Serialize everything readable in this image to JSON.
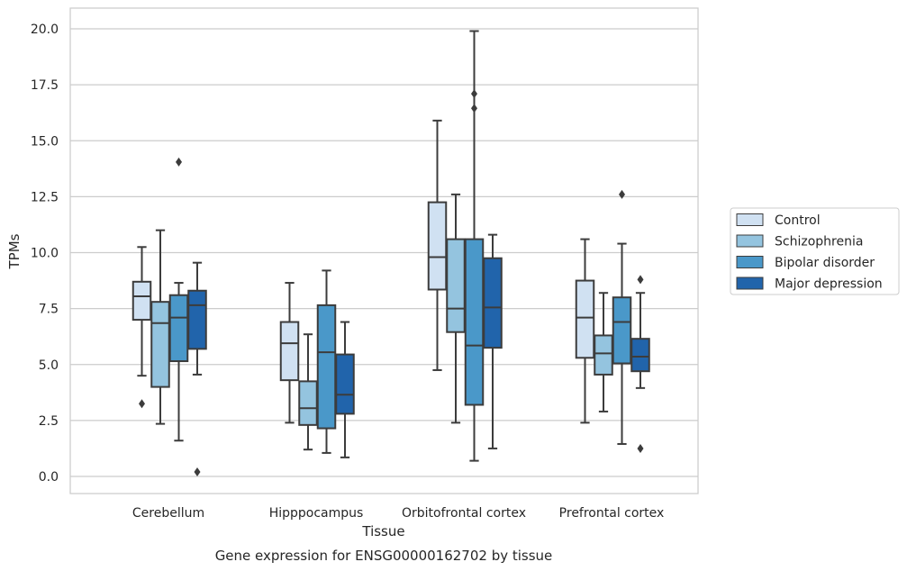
{
  "chart_data": {
    "type": "box",
    "title": "",
    "caption": "Gene expression for ENSG00000162702 by tissue",
    "xlabel": "Tissue",
    "ylabel": "TPMs",
    "ylim": [
      -0.8,
      20.9
    ],
    "yticks": [
      0.0,
      2.5,
      5.0,
      7.5,
      10.0,
      12.5,
      15.0,
      17.5,
      20.0
    ],
    "ytick_labels": [
      "0.0",
      "2.5",
      "5.0",
      "7.5",
      "10.0",
      "12.5",
      "15.0",
      "17.5",
      "20.0"
    ],
    "grid": "horizontal",
    "legend_placement": "right",
    "categories": [
      "Cerebellum",
      "Hipppocampus",
      "Orbitofrontal cortex",
      "Prefrontal cortex"
    ],
    "series": [
      {
        "name": "Control",
        "color": "#d0e1f2",
        "boxes": [
          {
            "whislo": 4.5,
            "q1": 7.0,
            "med": 8.05,
            "q3": 8.7,
            "whishi": 10.25,
            "fliers": [
              3.25
            ]
          },
          {
            "whislo": 2.4,
            "q1": 4.3,
            "med": 5.95,
            "q3": 6.9,
            "whishi": 8.65,
            "fliers": []
          },
          {
            "whislo": 4.75,
            "q1": 8.35,
            "med": 9.8,
            "q3": 12.25,
            "whishi": 15.9,
            "fliers": []
          },
          {
            "whislo": 2.4,
            "q1": 5.3,
            "med": 7.1,
            "q3": 8.75,
            "whishi": 10.6,
            "fliers": []
          }
        ]
      },
      {
        "name": "Schizophrenia",
        "color": "#94c4df",
        "boxes": [
          {
            "whislo": 2.35,
            "q1": 4.0,
            "med": 6.85,
            "q3": 7.8,
            "whishi": 11.0,
            "fliers": []
          },
          {
            "whislo": 1.2,
            "q1": 2.3,
            "med": 3.05,
            "q3": 4.25,
            "whishi": 6.35,
            "fliers": []
          },
          {
            "whislo": 2.4,
            "q1": 6.45,
            "med": 7.5,
            "q3": 10.6,
            "whishi": 12.6,
            "fliers": []
          },
          {
            "whislo": 2.9,
            "q1": 4.55,
            "med": 5.5,
            "q3": 6.3,
            "whishi": 8.2,
            "fliers": []
          }
        ]
      },
      {
        "name": "Bipolar disorder",
        "color": "#4a98c9",
        "boxes": [
          {
            "whislo": 1.6,
            "q1": 5.15,
            "med": 7.1,
            "q3": 8.1,
            "whishi": 8.65,
            "fliers": [
              14.05
            ]
          },
          {
            "whislo": 1.05,
            "q1": 2.15,
            "med": 5.55,
            "q3": 7.65,
            "whishi": 9.2,
            "fliers": []
          },
          {
            "whislo": 0.7,
            "q1": 3.2,
            "med": 5.85,
            "q3": 10.6,
            "whishi": 19.9,
            "fliers": [
              17.1,
              16.45
            ]
          },
          {
            "whislo": 1.45,
            "q1": 5.05,
            "med": 6.9,
            "q3": 8.0,
            "whishi": 10.4,
            "fliers": [
              12.6
            ]
          }
        ]
      },
      {
        "name": "Major depression",
        "color": "#2164ab",
        "boxes": [
          {
            "whislo": 4.55,
            "q1": 5.7,
            "med": 7.65,
            "q3": 8.3,
            "whishi": 9.55,
            "fliers": [
              0.2
            ]
          },
          {
            "whislo": 0.85,
            "q1": 2.8,
            "med": 3.65,
            "q3": 5.45,
            "whishi": 6.9,
            "fliers": []
          },
          {
            "whislo": 1.25,
            "q1": 5.75,
            "med": 7.55,
            "q3": 9.75,
            "whishi": 10.8,
            "fliers": []
          },
          {
            "whislo": 3.95,
            "q1": 4.7,
            "med": 5.35,
            "q3": 6.15,
            "whishi": 8.2,
            "fliers": [
              8.8,
              1.25
            ]
          }
        ]
      }
    ]
  }
}
